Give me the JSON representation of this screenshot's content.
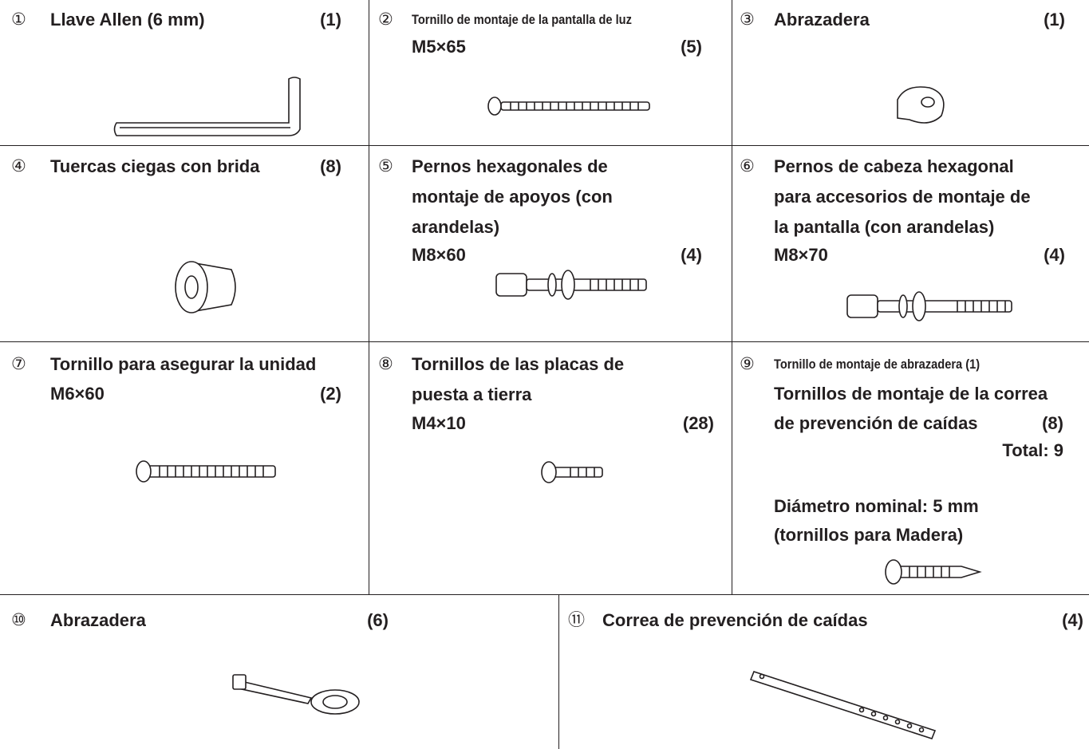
{
  "items": [
    {
      "number": "①",
      "name_lines": [
        "Llave Allen (6 mm)"
      ],
      "qty": "(1)"
    },
    {
      "number": "②",
      "name_lines": [
        "Tornillo de montaje de la pantalla de luz"
      ],
      "spec": "M5×65",
      "qty": "(5)"
    },
    {
      "number": "③",
      "name_lines": [
        "Abrazadera"
      ],
      "qty": "(1)"
    },
    {
      "number": "④",
      "name_lines": [
        "Tuercas ciegas con brida"
      ],
      "qty": "(8)"
    },
    {
      "number": "⑤",
      "name_lines": [
        "Pernos hexagonales de",
        "montaje de apoyos (con",
        "arandelas)"
      ],
      "spec": "M8×60",
      "qty": "(4)"
    },
    {
      "number": "⑥",
      "name_lines": [
        "Pernos de cabeza hexagonal",
        "para accesorios de montaje de",
        "la pantalla (con arandelas)"
      ],
      "spec": "M8×70",
      "qty": "(4)"
    },
    {
      "number": "⑦",
      "name_lines": [
        "Tornillo para asegurar la unidad"
      ],
      "spec": "M6×60",
      "qty": "(2)"
    },
    {
      "number": "⑧",
      "name_lines": [
        "Tornillos de las placas de",
        "puesta a tierra"
      ],
      "spec": "M4×10",
      "qty": "(28)"
    },
    {
      "number": "⑨",
      "name_lines": [
        "Tornillo de montaje de abrazadera (1)",
        "Tornillos de montaje de la correa",
        "de prevención de caídas"
      ],
      "qty": "(8)",
      "total": "Total: 9",
      "note_lines": [
        "Diámetro nominal: 5 mm",
        "(tornillos para Madera)"
      ]
    },
    {
      "number": "⑩",
      "name_lines": [
        "Abrazadera"
      ],
      "qty": "(6)"
    },
    {
      "number": "⑪",
      "name_lines": [
        "Correa de prevención de caídas"
      ],
      "qty": "(4)"
    }
  ]
}
